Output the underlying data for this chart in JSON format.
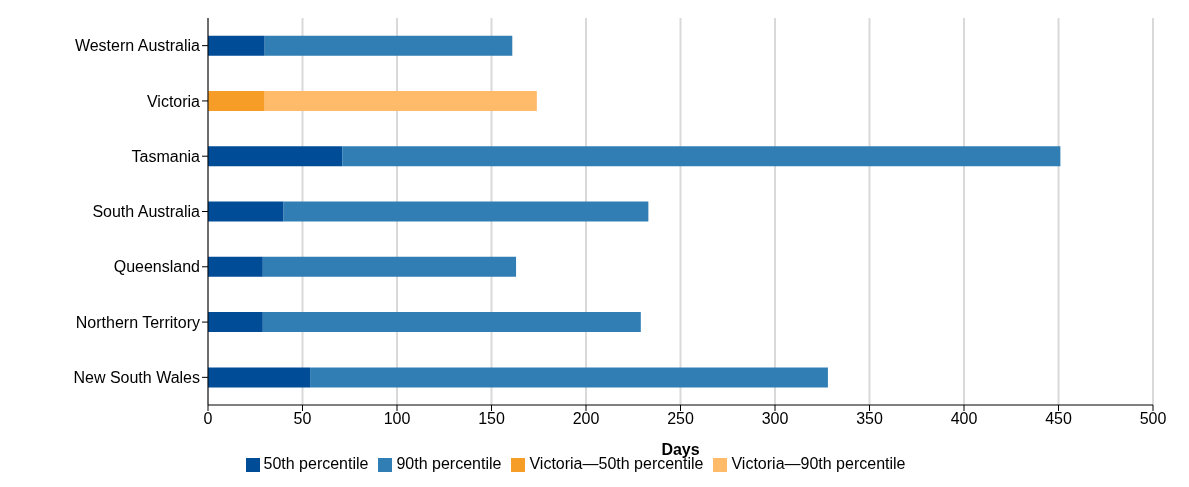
{
  "chart_data": {
    "type": "bar",
    "orientation": "horizontal",
    "stacked": true,
    "xlabel": "Days",
    "categories": [
      "Western Australia",
      "Victoria",
      "Tasmania",
      "South Australia",
      "Queensland",
      "Northern Territory",
      "New South Wales"
    ],
    "series": [
      {
        "name": "50th percentile",
        "color": "#004c97",
        "values": [
          30,
          null,
          71,
          40,
          29,
          29,
          54
        ]
      },
      {
        "name": "90th percentile",
        "color": "#317eb5",
        "values": [
          131,
          null,
          380,
          193,
          134,
          200,
          274
        ]
      },
      {
        "name": "Victoria—50th percentile",
        "color": "#f69d28",
        "values": [
          null,
          30,
          null,
          null,
          null,
          null,
          null
        ]
      },
      {
        "name": "Victoria—90th percentile",
        "color": "#ffbb6a",
        "values": [
          null,
          144,
          null,
          null,
          null,
          null,
          null
        ]
      }
    ],
    "xlim": [
      0,
      500
    ],
    "xticks": [
      0,
      50,
      100,
      150,
      200,
      250,
      300,
      350,
      400,
      450,
      500
    ],
    "grid": "x",
    "legend": "bottom"
  }
}
